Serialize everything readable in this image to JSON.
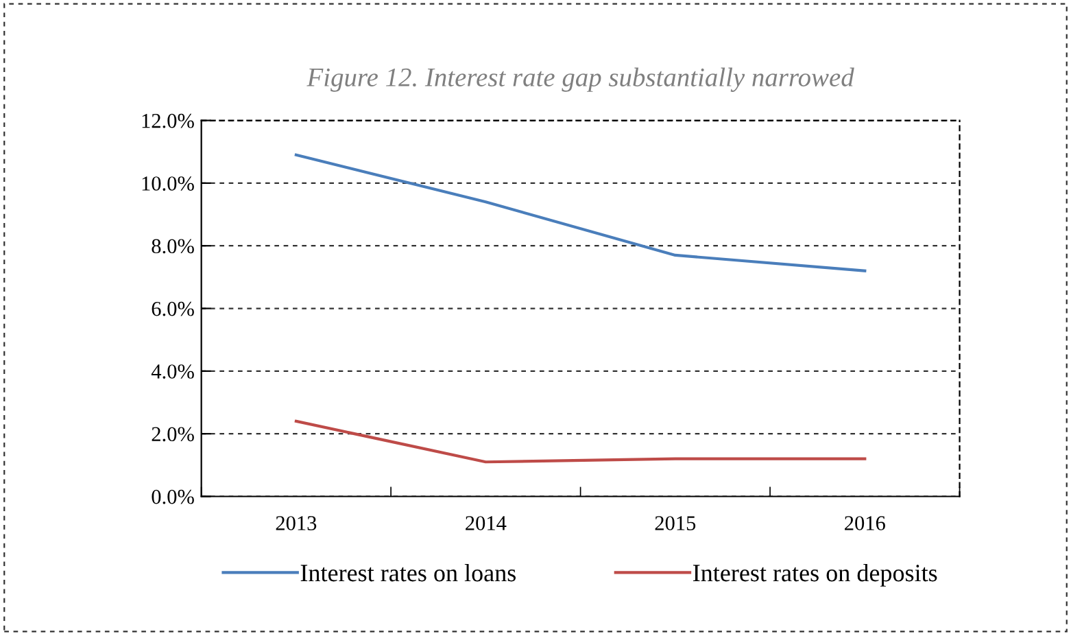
{
  "chart_data": {
    "type": "line",
    "title": "Figure 12. Interest rate gap substantially narrowed",
    "categories": [
      "2013",
      "2014",
      "2015",
      "2016"
    ],
    "series": [
      {
        "name": "Interest rates on loans",
        "color": "#4a7ebb",
        "values": [
          10.9,
          9.4,
          7.7,
          7.2
        ]
      },
      {
        "name": "Interest rates on deposits",
        "color": "#be4b48",
        "values": [
          2.4,
          1.1,
          1.2,
          1.2
        ]
      }
    ],
    "ylim": [
      0,
      12
    ],
    "yticks": [
      {
        "value": 0,
        "label": "0.0%"
      },
      {
        "value": 2,
        "label": "2.0%"
      },
      {
        "value": 4,
        "label": "4.0%"
      },
      {
        "value": 6,
        "label": "6.0%"
      },
      {
        "value": 8,
        "label": "8.0%"
      },
      {
        "value": 10,
        "label": "10.0%"
      },
      {
        "value": 12,
        "label": "12.0%"
      }
    ],
    "grid": "y",
    "legend": "bottom",
    "marker": "none",
    "line_style": "solid"
  }
}
